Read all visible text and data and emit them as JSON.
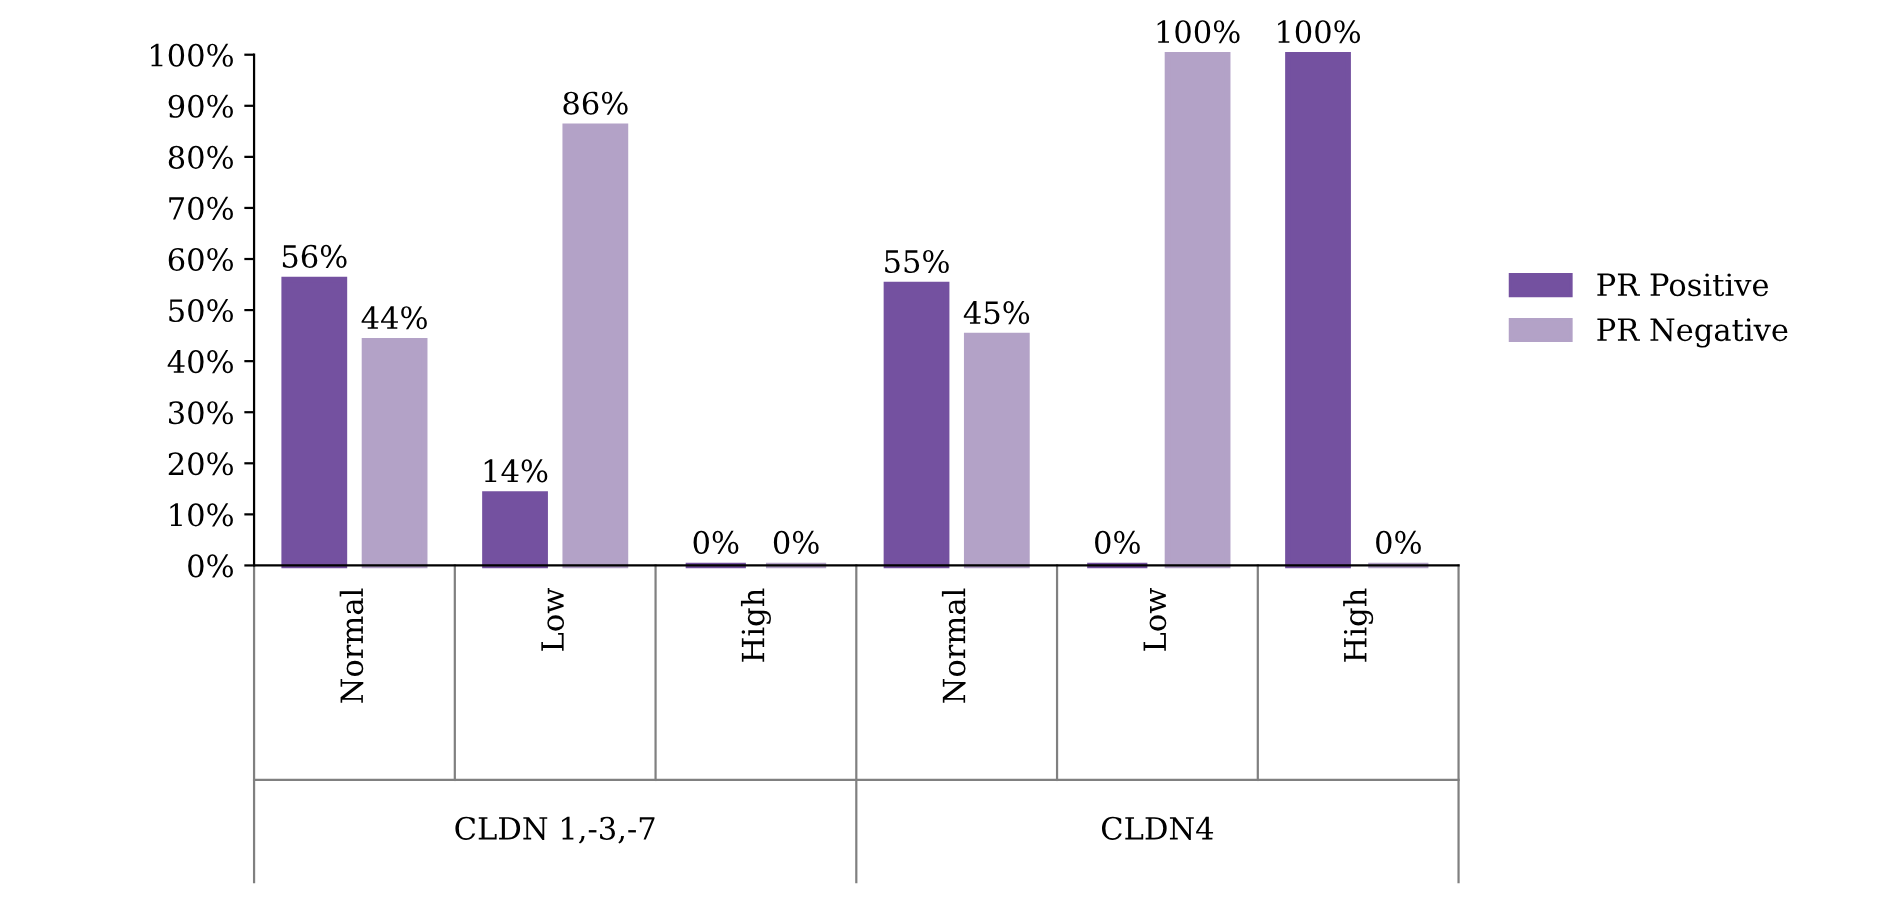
{
  "chart_data": {
    "type": "bar",
    "categories": [
      "Normal",
      "Low",
      "High",
      "Normal",
      "Low",
      "High"
    ],
    "series": [
      {
        "name": "PR Positive",
        "color": "#7451a0",
        "values": [
          56,
          14,
          0,
          55,
          0,
          100
        ],
        "value_labels": [
          "56%",
          "14%",
          "0%",
          "55%",
          "0%",
          "100%"
        ]
      },
      {
        "name": "PR Negative",
        "color": "#b3a2c7",
        "values": [
          44,
          86,
          0,
          45,
          100,
          0
        ],
        "value_labels": [
          "44%",
          "86%",
          "0%",
          "45%",
          "100%",
          "0%"
        ]
      }
    ],
    "annotations": [
      "CLDN 1,-3,-7",
      "CLDN4"
    ],
    "ylim": [
      0,
      100
    ],
    "yticks": [
      {
        "value": 0,
        "label": "0%"
      },
      {
        "value": 10,
        "label": "10%"
      },
      {
        "value": 20,
        "label": "20%"
      },
      {
        "value": 30,
        "label": "30%"
      },
      {
        "value": 40,
        "label": "40%"
      },
      {
        "value": 50,
        "label": "50%"
      },
      {
        "value": 60,
        "label": "60%"
      },
      {
        "value": 70,
        "label": "70%"
      },
      {
        "value": 80,
        "label": "80%"
      },
      {
        "value": 90,
        "label": "90%"
      },
      {
        "value": 100,
        "label": "100%"
      }
    ],
    "grid": false,
    "legend": "right"
  }
}
